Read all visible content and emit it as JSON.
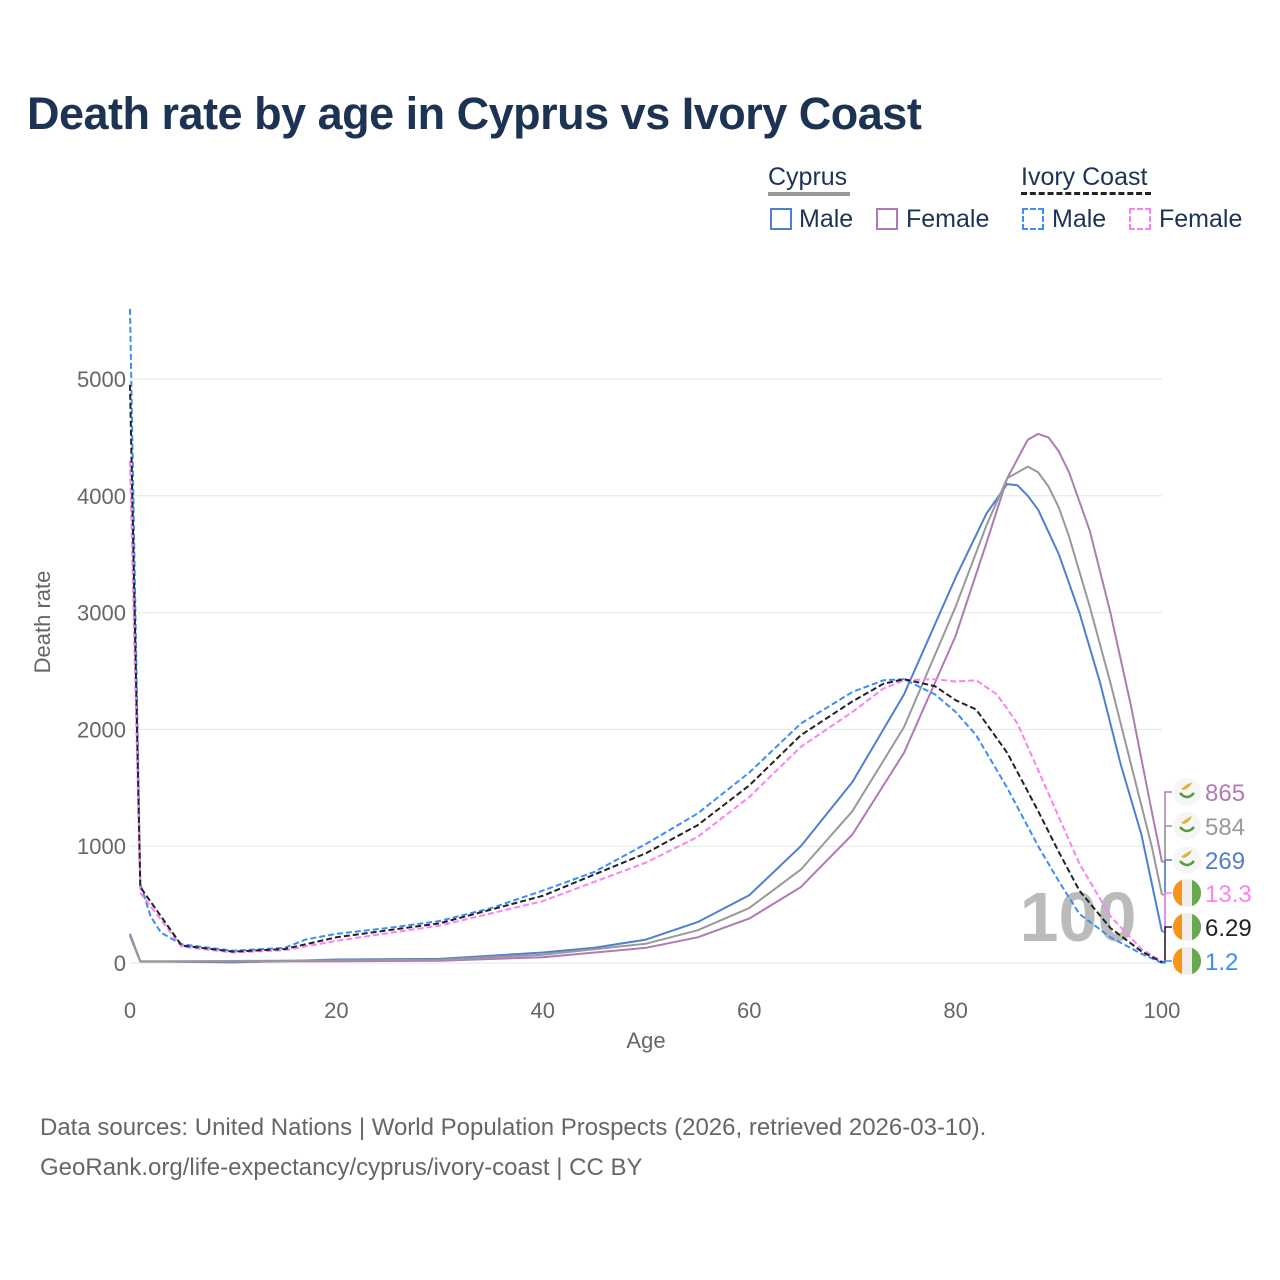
{
  "title": "Death rate by age in Cyprus vs Ivory Coast",
  "legend": {
    "group1": "Cyprus",
    "group2": "Ivory Coast",
    "male": "Male",
    "female": "Female"
  },
  "source": {
    "line1": "Data sources: United Nations | World Population Prospects (2026, retrieved 2026-03-10).",
    "line2": "GeoRank.org/life-expectancy/cyprus/ivory-coast | CC BY"
  },
  "watermark": "100",
  "chart_data": {
    "type": "line",
    "xlabel": "Age",
    "ylabel": "Death rate",
    "xlim": [
      0,
      100
    ],
    "ylim": [
      0,
      5600
    ],
    "xticks": [
      "0",
      "20",
      "40",
      "60",
      "80",
      "100"
    ],
    "yticks": [
      "0",
      "1000",
      "2000",
      "3000",
      "4000",
      "5000"
    ],
    "grid": true,
    "series": [
      {
        "name": "Cyprus Male",
        "color": "#4f7fcf",
        "dash": false,
        "end_label": "269",
        "points": [
          [
            0,
            250
          ],
          [
            1,
            15
          ],
          [
            10,
            5
          ],
          [
            20,
            30
          ],
          [
            30,
            35
          ],
          [
            40,
            90
          ],
          [
            45,
            130
          ],
          [
            50,
            200
          ],
          [
            55,
            350
          ],
          [
            60,
            580
          ],
          [
            65,
            1000
          ],
          [
            70,
            1550
          ],
          [
            75,
            2300
          ],
          [
            80,
            3300
          ],
          [
            83,
            3850
          ],
          [
            85,
            4100
          ],
          [
            86,
            4090
          ],
          [
            87,
            4000
          ],
          [
            88,
            3880
          ],
          [
            90,
            3500
          ],
          [
            92,
            3000
          ],
          [
            94,
            2400
          ],
          [
            96,
            1700
          ],
          [
            98,
            1100
          ],
          [
            100,
            269
          ]
        ]
      },
      {
        "name": "Cyprus Female",
        "color": "#b07ab5",
        "dash": false,
        "end_label": "865",
        "points": [
          [
            0,
            230
          ],
          [
            1,
            12
          ],
          [
            20,
            15
          ],
          [
            30,
            20
          ],
          [
            40,
            50
          ],
          [
            50,
            130
          ],
          [
            55,
            220
          ],
          [
            60,
            380
          ],
          [
            65,
            650
          ],
          [
            70,
            1100
          ],
          [
            75,
            1800
          ],
          [
            80,
            2800
          ],
          [
            83,
            3600
          ],
          [
            85,
            4150
          ],
          [
            87,
            4480
          ],
          [
            88,
            4530
          ],
          [
            89,
            4500
          ],
          [
            90,
            4380
          ],
          [
            91,
            4200
          ],
          [
            93,
            3700
          ],
          [
            95,
            3000
          ],
          [
            97,
            2200
          ],
          [
            99,
            1300
          ],
          [
            100,
            865
          ]
        ]
      },
      {
        "name": "Cyprus",
        "color": "#999999",
        "dash": false,
        "end_label": "584",
        "points": [
          [
            0,
            240
          ],
          [
            1,
            14
          ],
          [
            20,
            22
          ],
          [
            30,
            28
          ],
          [
            40,
            70
          ],
          [
            50,
            165
          ],
          [
            55,
            280
          ],
          [
            60,
            470
          ],
          [
            65,
            800
          ],
          [
            70,
            1300
          ],
          [
            75,
            2020
          ],
          [
            80,
            3050
          ],
          [
            83,
            3750
          ],
          [
            85,
            4150
          ],
          [
            87,
            4250
          ],
          [
            88,
            4200
          ],
          [
            89,
            4080
          ],
          [
            90,
            3900
          ],
          [
            91,
            3650
          ],
          [
            93,
            3050
          ],
          [
            95,
            2400
          ],
          [
            97,
            1700
          ],
          [
            99,
            1000
          ],
          [
            100,
            584
          ]
        ]
      },
      {
        "name": "Ivory Coast Male",
        "color": "#3b8ef5",
        "dash": true,
        "end_label": "1.2",
        "points": [
          [
            0,
            5600
          ],
          [
            1,
            680
          ],
          [
            2,
            400
          ],
          [
            3,
            260
          ],
          [
            5,
            160
          ],
          [
            10,
            105
          ],
          [
            15,
            130
          ],
          [
            17,
            200
          ],
          [
            20,
            250
          ],
          [
            25,
            300
          ],
          [
            30,
            360
          ],
          [
            35,
            470
          ],
          [
            40,
            620
          ],
          [
            45,
            780
          ],
          [
            50,
            1020
          ],
          [
            55,
            1280
          ],
          [
            60,
            1630
          ],
          [
            65,
            2050
          ],
          [
            70,
            2320
          ],
          [
            73,
            2420
          ],
          [
            75,
            2430
          ],
          [
            78,
            2300
          ],
          [
            80,
            2150
          ],
          [
            82,
            1950
          ],
          [
            85,
            1500
          ],
          [
            88,
            1000
          ],
          [
            90,
            700
          ],
          [
            92,
            420
          ],
          [
            95,
            220
          ],
          [
            98,
            80
          ],
          [
            100,
            1.2
          ]
        ]
      },
      {
        "name": "Ivory Coast Female",
        "color": "#ff80ee",
        "dash": true,
        "end_label": "13.3",
        "points": [
          [
            0,
            4300
          ],
          [
            1,
            600
          ],
          [
            5,
            140
          ],
          [
            10,
            90
          ],
          [
            15,
            110
          ],
          [
            20,
            190
          ],
          [
            30,
            320
          ],
          [
            40,
            530
          ],
          [
            50,
            860
          ],
          [
            55,
            1080
          ],
          [
            60,
            1420
          ],
          [
            65,
            1850
          ],
          [
            70,
            2150
          ],
          [
            73,
            2350
          ],
          [
            75,
            2420
          ],
          [
            78,
            2430
          ],
          [
            80,
            2410
          ],
          [
            82,
            2420
          ],
          [
            84,
            2300
          ],
          [
            86,
            2050
          ],
          [
            88,
            1650
          ],
          [
            90,
            1250
          ],
          [
            92,
            850
          ],
          [
            95,
            400
          ],
          [
            98,
            120
          ],
          [
            100,
            13.3
          ]
        ]
      },
      {
        "name": "Ivory Coast",
        "color": "#222222",
        "dash": true,
        "end_label": "6.29",
        "points": [
          [
            0,
            4950
          ],
          [
            1,
            650
          ],
          [
            5,
            150
          ],
          [
            10,
            98
          ],
          [
            15,
            120
          ],
          [
            20,
            220
          ],
          [
            30,
            340
          ],
          [
            40,
            575
          ],
          [
            50,
            940
          ],
          [
            55,
            1180
          ],
          [
            60,
            1520
          ],
          [
            65,
            1950
          ],
          [
            70,
            2240
          ],
          [
            73,
            2390
          ],
          [
            75,
            2430
          ],
          [
            78,
            2370
          ],
          [
            80,
            2250
          ],
          [
            82,
            2170
          ],
          [
            85,
            1800
          ],
          [
            88,
            1300
          ],
          [
            90,
            950
          ],
          [
            92,
            620
          ],
          [
            95,
            300
          ],
          [
            98,
            100
          ],
          [
            100,
            6.29
          ]
        ]
      }
    ]
  }
}
